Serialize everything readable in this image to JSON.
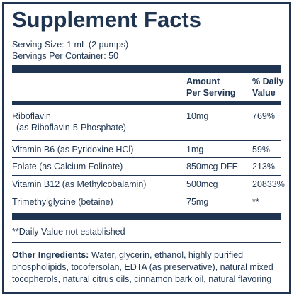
{
  "title": "Supplement Facts",
  "serving_size": "Serving Size: 1 mL (2 pumps)",
  "servings_per_container": "Servings Per Container: 50",
  "headers": {
    "amount_line1": "Amount",
    "amount_line2": "Per Serving",
    "dv_line1": "% Daily",
    "dv_line2": "Value"
  },
  "rows": [
    {
      "name": "Riboflavin",
      "sub": "(as Riboflavin-5-Phosphate)",
      "amount": "10mg",
      "dv": "769%"
    },
    {
      "name": "Vitamin B6 (as Pyridoxine HCl)",
      "amount": "1mg",
      "dv": "59%"
    },
    {
      "name": "Folate (as Calcium Folinate)",
      "amount": "850mcg DFE",
      "dv": "213%"
    },
    {
      "name": "Vitamin B12 (as Methylcobalamin)",
      "amount": "500mcg",
      "dv": "20833%"
    },
    {
      "name": "Trimethylglycine (betaine)",
      "amount": "75mg",
      "dv": "**"
    }
  ],
  "footnote": "**Daily Value not established",
  "other_ingredients": {
    "label": "Other Ingredients:",
    "text": " Water, glycerin, ethanol, highly purified phospholipids, tocofersolan, EDTA (as preservative), natural mixed tocopherols, natural citrus oils, cinnamon bark oil, natural flavoring"
  },
  "colors": {
    "ink": "#1e3450",
    "background": "#ffffff"
  }
}
